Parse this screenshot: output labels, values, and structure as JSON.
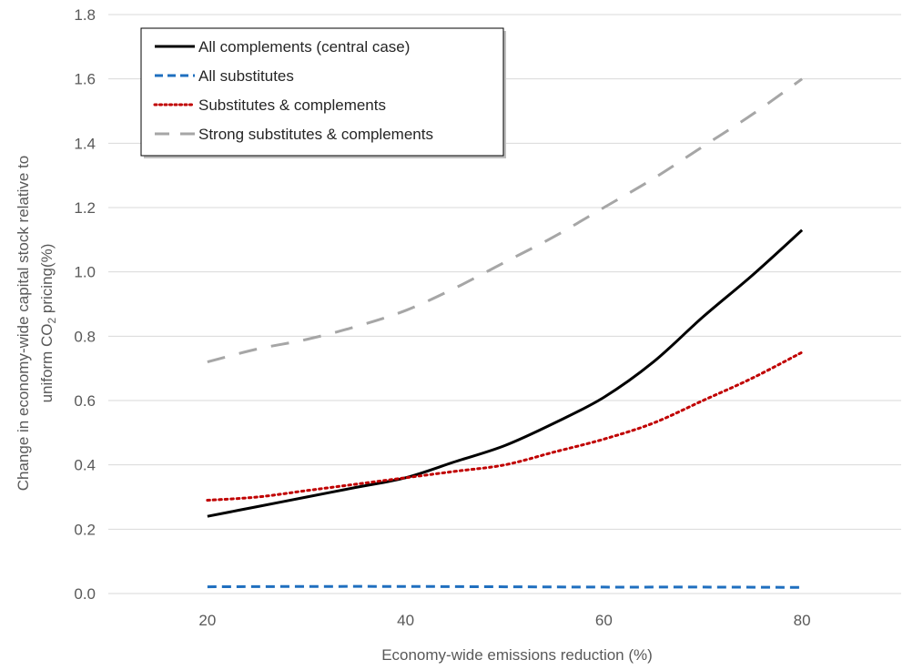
{
  "chart_data": {
    "type": "line",
    "title": "",
    "xlabel": "Economy-wide emissions reduction (%)",
    "ylabel_main": "Change in economy-wide capital stock relative to",
    "ylabel_line2_prefix": "uniform CO",
    "ylabel_line2_sub": "2",
    "ylabel_line2_suffix": " pricing(%)",
    "xlim": [
      10,
      90
    ],
    "ylim": [
      0,
      1.8
    ],
    "x_ticks": [
      20,
      40,
      60,
      80
    ],
    "x_tick_labels": [
      "20",
      "40",
      "60",
      "80"
    ],
    "y_ticks": [
      0,
      0.2,
      0.4,
      0.6,
      0.8,
      1.0,
      1.2,
      1.4,
      1.6,
      1.8
    ],
    "y_tick_labels": [
      "0.0",
      "0.2",
      "0.4",
      "0.6",
      "0.8",
      "1.0",
      "1.2",
      "1.4",
      "1.6",
      "1.8"
    ],
    "grid": "horizontal",
    "legend_position": "top-left",
    "series": [
      {
        "name": "All complements (central case)",
        "color": "#000000",
        "dash": "solid",
        "x": [
          20,
          25,
          30,
          35,
          40,
          45,
          50,
          55,
          60,
          65,
          70,
          75,
          80
        ],
        "y": [
          0.24,
          0.27,
          0.3,
          0.33,
          0.36,
          0.41,
          0.46,
          0.53,
          0.61,
          0.72,
          0.86,
          0.99,
          1.13
        ]
      },
      {
        "name": "All substitutes",
        "color": "#1f6fbf",
        "dash": "dashed",
        "x": [
          20,
          30,
          40,
          50,
          60,
          70,
          80
        ],
        "y": [
          0.021,
          0.022,
          0.022,
          0.021,
          0.02,
          0.02,
          0.019
        ]
      },
      {
        "name": "Substitutes & complements",
        "color": "#c00000",
        "dash": "dotted",
        "x": [
          20,
          25,
          30,
          35,
          40,
          45,
          50,
          55,
          60,
          65,
          70,
          75,
          80
        ],
        "y": [
          0.29,
          0.3,
          0.32,
          0.34,
          0.36,
          0.38,
          0.4,
          0.44,
          0.48,
          0.53,
          0.6,
          0.67,
          0.75
        ]
      },
      {
        "name": "Strong substitutes & complements",
        "color": "#a6a6a6",
        "dash": "longdash",
        "x": [
          20,
          25,
          30,
          35,
          40,
          45,
          50,
          55,
          60,
          65,
          70,
          75,
          80
        ],
        "y": [
          0.72,
          0.76,
          0.79,
          0.83,
          0.88,
          0.95,
          1.03,
          1.11,
          1.2,
          1.29,
          1.39,
          1.49,
          1.6
        ]
      }
    ]
  }
}
